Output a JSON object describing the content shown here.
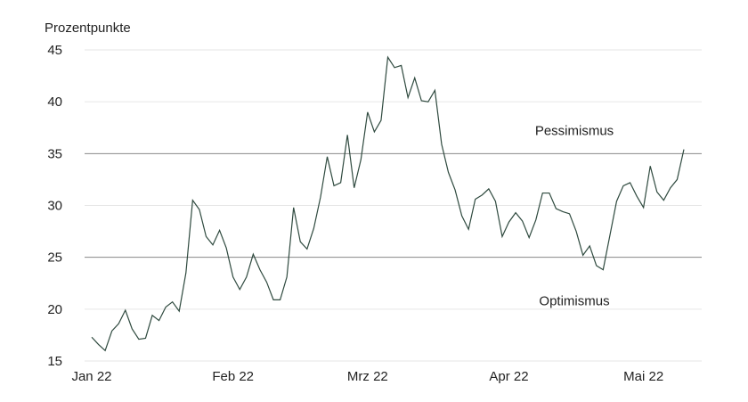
{
  "chart_data": {
    "type": "line",
    "ylabel": "Prozentpunkte",
    "ylim": [
      15,
      45
    ],
    "yticks": [
      15,
      20,
      25,
      30,
      35,
      40,
      45
    ],
    "x_tick_labels": [
      "Jan 22",
      "Feb 22",
      "Mrz 22",
      "Apr 22",
      "Mai 22"
    ],
    "x_tick_index": [
      0,
      21,
      41,
      62,
      82
    ],
    "grid": "horizontal",
    "colors": {
      "line": "#2f4a3f",
      "grid": "#e6e6e6",
      "threshold": "#888888"
    },
    "annotations": [
      {
        "text": "Pessimismus",
        "y": 37.2
      },
      {
        "text": "Optimismus",
        "y": 20.8
      }
    ],
    "thresholds": [
      35,
      25
    ],
    "series": [
      {
        "values": [
          17.3,
          16.6,
          16.0,
          17.9,
          18.6,
          19.9,
          18.1,
          17.1,
          17.2,
          19.4,
          18.9,
          20.2,
          20.7,
          19.8,
          23.5,
          30.5,
          29.6,
          27.0,
          26.2,
          27.6,
          25.9,
          23.1,
          21.9,
          23.1,
          25.3,
          23.8,
          22.6,
          20.9,
          20.9,
          23.1,
          29.8,
          26.5,
          25.8,
          27.8,
          30.8,
          34.7,
          31.9,
          32.2,
          36.8,
          31.7,
          34.4,
          39.0,
          37.1,
          38.2,
          44.3,
          43.3,
          43.5,
          40.4,
          42.3,
          40.1,
          40.0,
          41.1,
          35.9,
          33.2,
          31.5,
          29.0,
          27.7,
          30.6,
          31.0,
          31.6,
          30.4,
          27.0,
          28.4,
          29.3,
          28.5,
          26.9,
          28.6,
          31.2,
          31.2,
          29.7,
          29.4,
          29.2,
          27.5,
          25.2,
          26.1,
          24.2,
          23.8,
          27.1,
          30.4,
          31.9,
          32.2,
          30.9,
          29.8,
          33.8,
          31.3,
          30.5,
          31.7,
          32.5,
          35.4
        ]
      }
    ]
  }
}
